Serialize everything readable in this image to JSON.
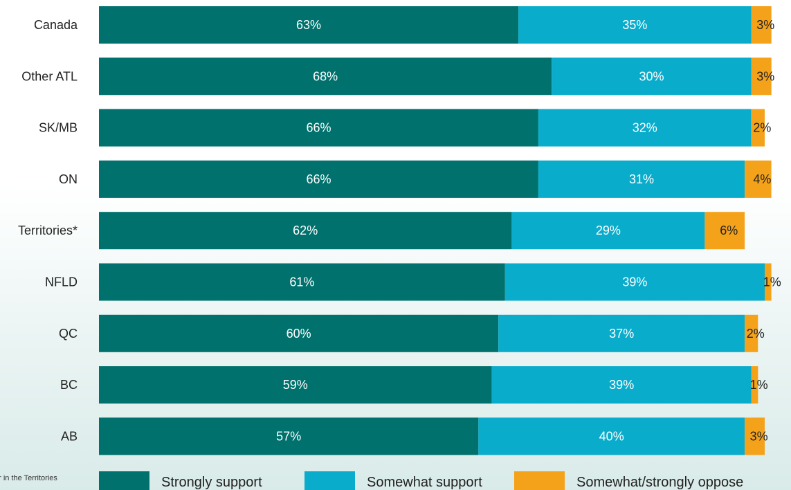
{
  "chart_data": {
    "type": "bar",
    "orientation": "horizontal",
    "stacked": true,
    "categories": [
      "Canada",
      "Other ATL",
      "SK/MB",
      "ON",
      "Territories*",
      "NFLD",
      "QC",
      "BC",
      "AB"
    ],
    "series": [
      {
        "name": "Strongly support",
        "color": "#00716c",
        "values": [
          63,
          68,
          66,
          66,
          62,
          61,
          60,
          59,
          57
        ]
      },
      {
        "name": "Somewhat support",
        "color": "#0aaccc",
        "values": [
          35,
          30,
          32,
          31,
          29,
          39,
          37,
          39,
          40
        ]
      },
      {
        "name": "Somewhat/strongly oppose",
        "color": "#f5a21b",
        "values": [
          3,
          3,
          2,
          4,
          6,
          1,
          2,
          1,
          3
        ]
      }
    ],
    "value_suffix": "%",
    "xlim": [
      0,
      100
    ],
    "grid": false,
    "legend": "bottom"
  },
  "footnote": "er in the Territories"
}
